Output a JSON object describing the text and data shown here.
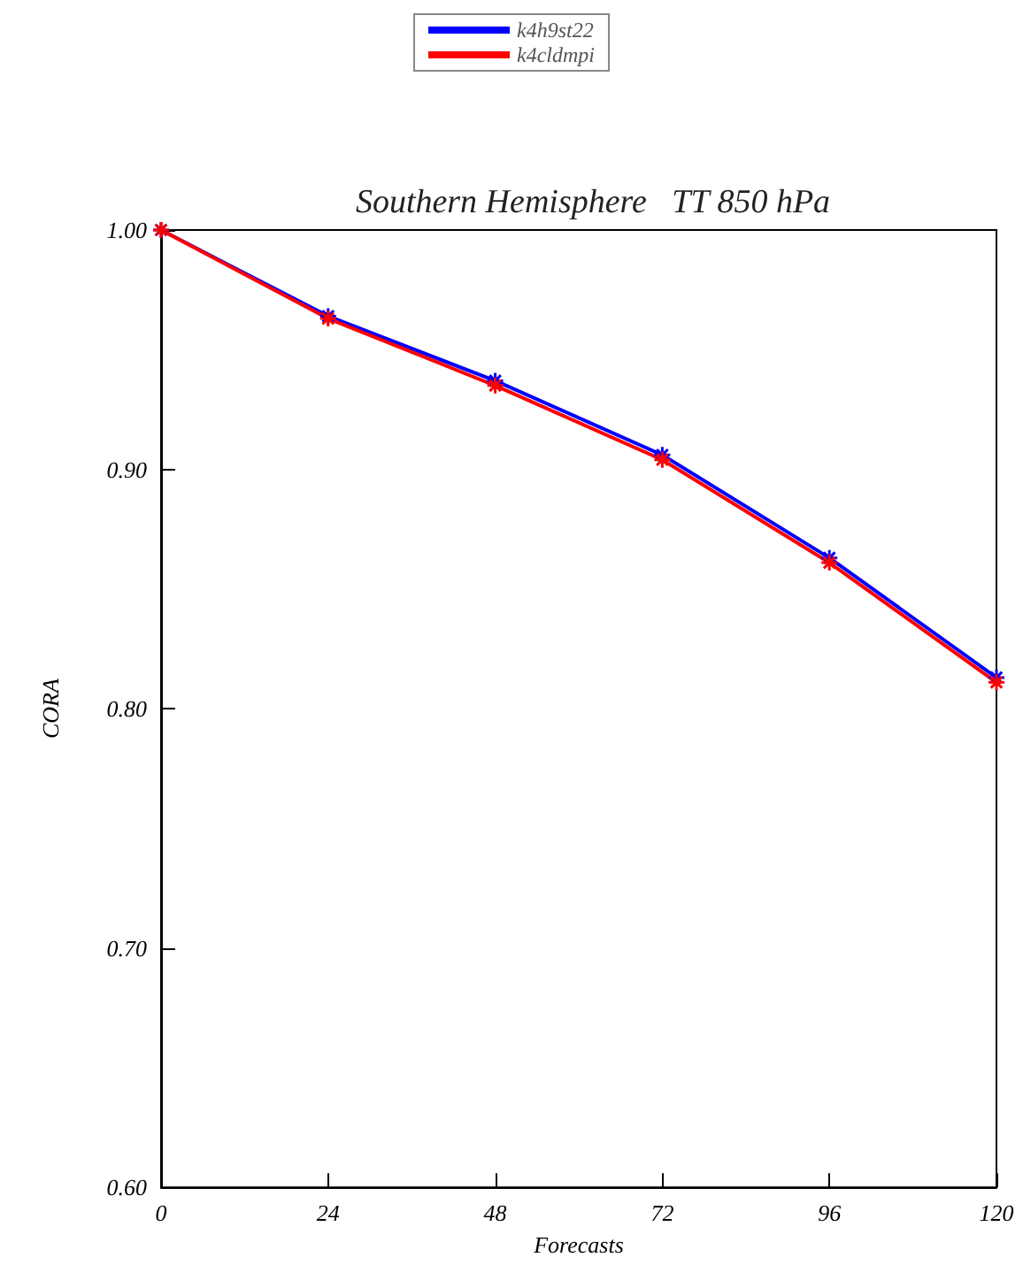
{
  "chart_data": {
    "type": "line",
    "title": "Southern Hemisphere   TT 850 hPa",
    "xlabel": "Forecasts",
    "ylabel": "CORA",
    "x": [
      0,
      24,
      48,
      72,
      96,
      120
    ],
    "series": [
      {
        "name": "k4h9st22",
        "color": "#0000ff",
        "values": [
          1.0,
          0.964,
          0.937,
          0.906,
          0.863,
          0.813
        ]
      },
      {
        "name": "k4cldmpi",
        "color": "#ff0000",
        "values": [
          1.0,
          0.963,
          0.935,
          0.904,
          0.861,
          0.811
        ]
      }
    ],
    "xlim": [
      0,
      120
    ],
    "xticks": [
      0,
      24,
      48,
      72,
      96,
      120
    ],
    "ylim": [
      0.6,
      1.0
    ],
    "yticks": [
      {
        "value": 0.6,
        "label": "0.60"
      },
      {
        "value": 0.7,
        "label": "0.70"
      },
      {
        "value": 0.8,
        "label": "0.80"
      },
      {
        "value": 0.9,
        "label": "0.90"
      },
      {
        "value": 1.0,
        "label": "1.00"
      }
    ],
    "grid": false,
    "legend": "top",
    "marker": "cross",
    "line_style": "solid"
  }
}
